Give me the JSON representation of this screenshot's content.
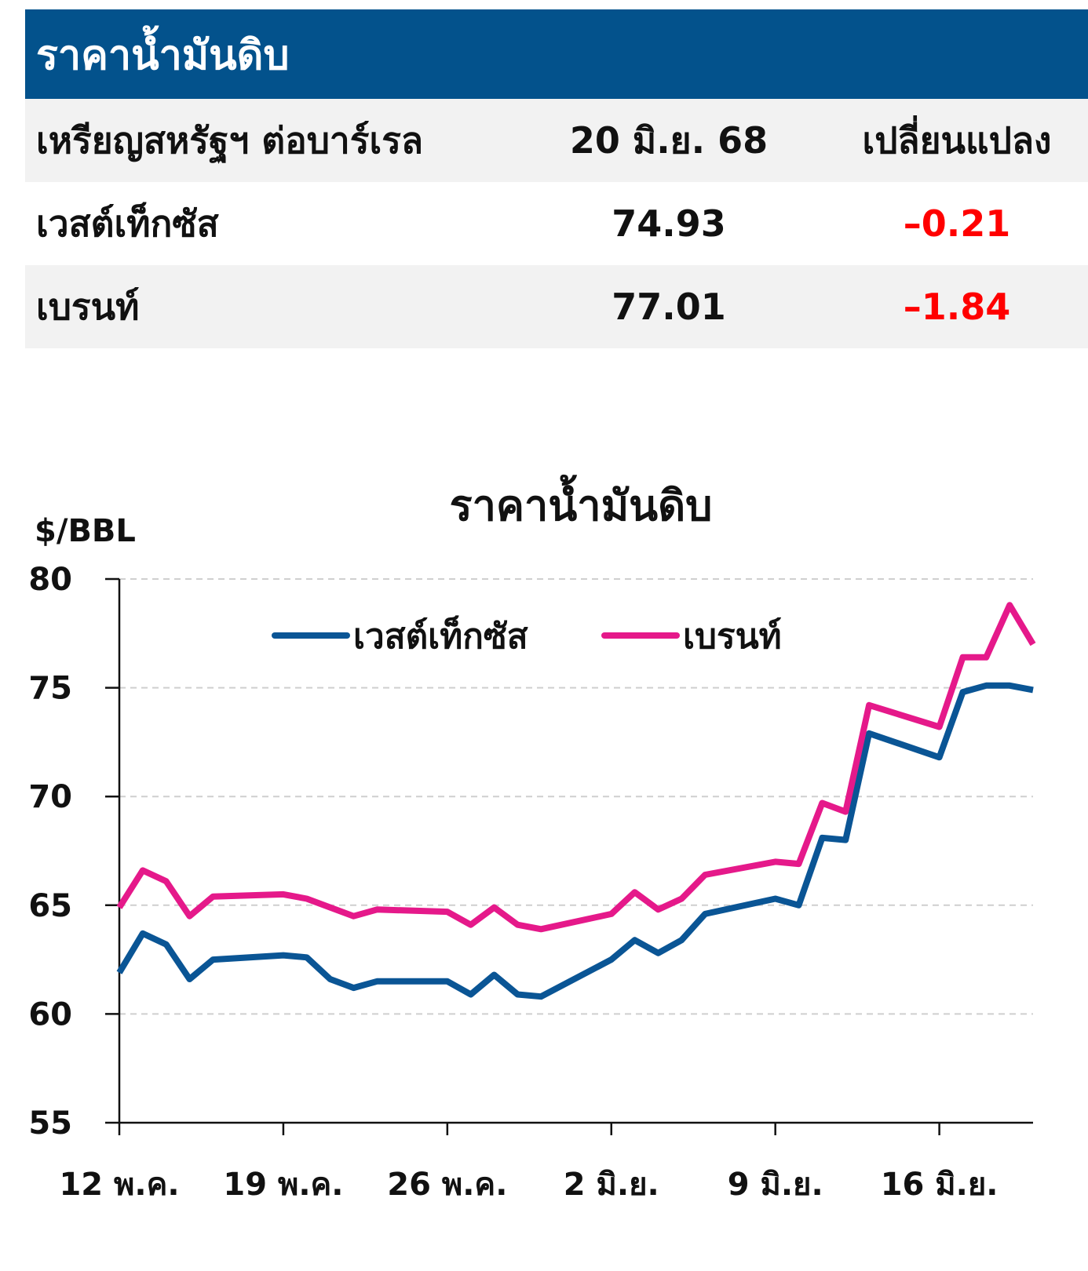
{
  "table": {
    "title": "ราคาน้ำมันดิบ",
    "header": {
      "unit": "เหรียญสหรัฐฯ ต่อบาร์เรล",
      "date": "20 มิ.ย. 68",
      "change": "เปลี่ยนแปลง"
    },
    "rows": [
      {
        "name": "เวสต์เท็กซัส",
        "price": "74.93",
        "change": "–0.21"
      },
      {
        "name": "เบรนท์",
        "price": "77.01",
        "change": "–1.84"
      }
    ],
    "negative_color": "#ff0000",
    "header_color": "#03528c"
  },
  "chart_data": {
    "type": "line",
    "title": "ราคาน้ำมันดิบ",
    "ylabel": "$/BBL",
    "ylim": [
      55,
      80
    ],
    "yticks": [
      "80",
      "75",
      "70",
      "65",
      "60",
      "55"
    ],
    "xlim": [
      0,
      39
    ],
    "xticks": [
      {
        "pos": 0,
        "label": "12 พ.ค."
      },
      {
        "pos": 7,
        "label": "19 พ.ค."
      },
      {
        "pos": 14,
        "label": "26 พ.ค."
      },
      {
        "pos": 21,
        "label": "2 มิ.ย."
      },
      {
        "pos": 28,
        "label": "9 มิ.ย."
      },
      {
        "pos": 35,
        "label": "16 มิ.ย."
      }
    ],
    "grid": "horizontal-dashed",
    "legend_position": "top",
    "series": [
      {
        "name": "เวสต์เท็กซัส",
        "color": "#0a5595",
        "points": [
          [
            0,
            61.9
          ],
          [
            1,
            63.7
          ],
          [
            2,
            63.2
          ],
          [
            3,
            61.6
          ],
          [
            4,
            62.5
          ],
          [
            7,
            62.7
          ],
          [
            8,
            62.6
          ],
          [
            9,
            61.6
          ],
          [
            10,
            61.2
          ],
          [
            11,
            61.5
          ],
          [
            14,
            61.5
          ],
          [
            15,
            60.9
          ],
          [
            16,
            61.8
          ],
          [
            17,
            60.9
          ],
          [
            18,
            60.8
          ],
          [
            21,
            62.5
          ],
          [
            22,
            63.4
          ],
          [
            23,
            62.8
          ],
          [
            24,
            63.4
          ],
          [
            25,
            64.6
          ],
          [
            28,
            65.3
          ],
          [
            29,
            65.0
          ],
          [
            30,
            68.1
          ],
          [
            31,
            68.0
          ],
          [
            32,
            72.9
          ],
          [
            35,
            71.8
          ],
          [
            36,
            74.8
          ],
          [
            37,
            75.1
          ],
          [
            38,
            75.1
          ],
          [
            39,
            74.9
          ]
        ]
      },
      {
        "name": "เบรนท์",
        "color": "#e5198a",
        "points": [
          [
            0,
            64.9
          ],
          [
            1,
            66.6
          ],
          [
            2,
            66.1
          ],
          [
            3,
            64.5
          ],
          [
            4,
            65.4
          ],
          [
            7,
            65.5
          ],
          [
            8,
            65.3
          ],
          [
            9,
            64.9
          ],
          [
            10,
            64.5
          ],
          [
            11,
            64.8
          ],
          [
            14,
            64.7
          ],
          [
            15,
            64.1
          ],
          [
            16,
            64.9
          ],
          [
            17,
            64.1
          ],
          [
            18,
            63.9
          ],
          [
            21,
            64.6
          ],
          [
            22,
            65.6
          ],
          [
            23,
            64.8
          ],
          [
            24,
            65.3
          ],
          [
            25,
            66.4
          ],
          [
            28,
            67.0
          ],
          [
            29,
            66.9
          ],
          [
            30,
            69.7
          ],
          [
            31,
            69.3
          ],
          [
            32,
            74.2
          ],
          [
            35,
            73.2
          ],
          [
            36,
            76.4
          ],
          [
            37,
            76.4
          ],
          [
            38,
            78.8
          ],
          [
            39,
            77.0
          ]
        ]
      }
    ]
  }
}
